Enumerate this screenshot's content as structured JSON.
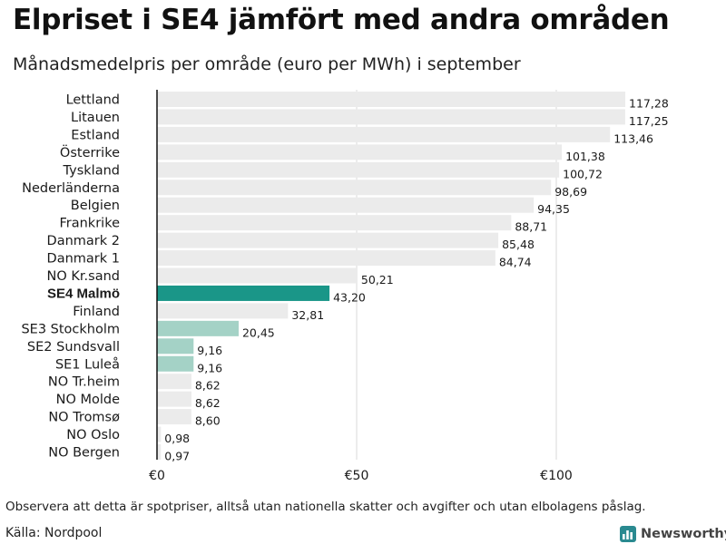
{
  "title": "Elpriset i SE4 jämfört med andra områden",
  "subtitle": "Månadsmedelpris per område (euro per MWh) i september",
  "footnote": "Observera att detta är spotpriser, alltså utan nationella skatter och avgifter och utan elbolagens påslag.",
  "source": "Källa: Nordpool",
  "brand": "Newsworthy",
  "colors": {
    "default_bar": "#ebebeb",
    "highlight_bar": "#1a9688",
    "se_bar": "#a4d2c6",
    "axis": "#111111",
    "grid": "#d9d9d9",
    "brand_icon": "#2a8a90"
  },
  "chart_data": {
    "type": "bar",
    "orientation": "horizontal",
    "title": "Elpriset i SE4 jämfört med andra områden",
    "subtitle": "Månadsmedelpris per område (euro per MWh) i september",
    "xlim": [
      0,
      120
    ],
    "xticks": [
      0,
      50,
      100
    ],
    "xtick_labels": [
      "€0",
      "€50",
      "€100"
    ],
    "grid": true,
    "categories": [
      "Lettland",
      "Litauen",
      "Estland",
      "Österrike",
      "Tyskland",
      "Nederländerna",
      "Belgien",
      "Frankrike",
      "Danmark  2",
      "Danmark  1",
      "NO Kr.sand",
      "SE4 Malmö",
      "Finland",
      "SE3  Stockholm",
      "SE2  Sundsvall",
      "SE1  Luleå",
      "NO Tr.heim",
      "NO Molde",
      "NO Tromsø",
      "NO Oslo",
      "NO Bergen"
    ],
    "values": [
      117.28,
      117.25,
      113.46,
      101.38,
      100.72,
      98.69,
      94.35,
      88.71,
      85.48,
      84.74,
      50.21,
      43.2,
      32.81,
      20.45,
      9.16,
      9.16,
      8.62,
      8.62,
      8.6,
      0.98,
      0.97
    ],
    "value_labels": [
      "117,28",
      "117,25",
      "113,46",
      "101,38",
      "100,72",
      "98,69",
      "94,35",
      "88,71",
      "85,48",
      "84,74",
      "50,21",
      "43,20",
      "32,81",
      "20,45",
      "9,16",
      "9,16",
      "8,62",
      "8,62",
      "8,60",
      "0,98",
      "0,97"
    ],
    "highlight": "SE4 Malmö",
    "secondary_highlight": [
      "SE3  Stockholm",
      "SE2  Sundsvall",
      "SE1  Luleå"
    ]
  }
}
